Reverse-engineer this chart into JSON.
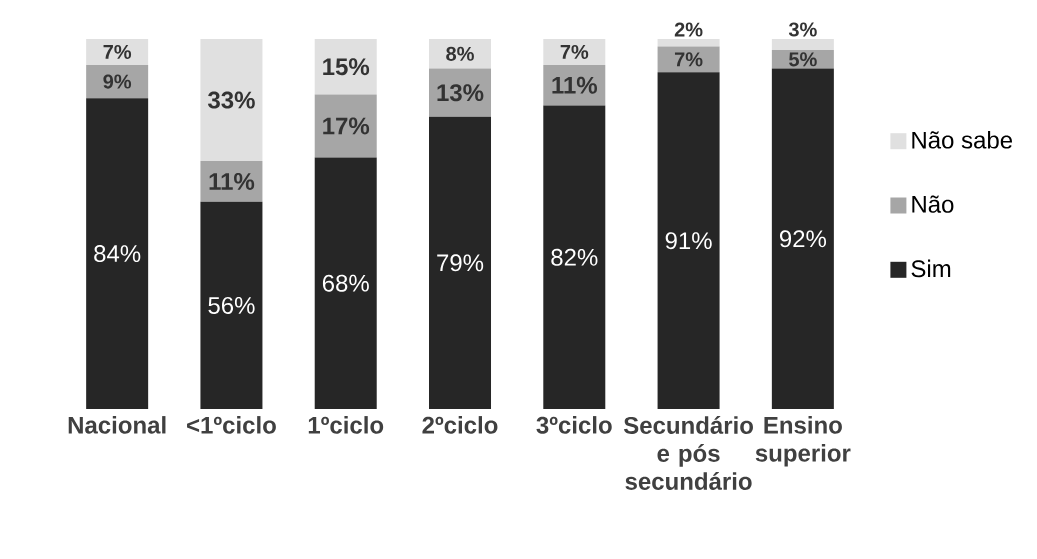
{
  "chart_data": {
    "type": "bar",
    "stacked": true,
    "legend": "right",
    "categories": [
      "Nacional",
      "<1ºciclo",
      "1ºciclo",
      "2ºciclo",
      "3ºciclo",
      "Secundário e pós secundário",
      "Ensino superior"
    ],
    "series": [
      {
        "name": "Sim",
        "color": "#262626",
        "values": [
          84,
          56,
          68,
          79,
          82,
          91,
          92
        ],
        "value_labels": [
          "84%",
          "56%",
          "68%",
          "79%",
          "82%",
          "91%",
          "92%"
        ]
      },
      {
        "name": "Não",
        "color": "#a6a6a6",
        "values": [
          9,
          11,
          17,
          13,
          11,
          7,
          5
        ],
        "value_labels": [
          "9%",
          "11%",
          "17%",
          "13%",
          "11%",
          "7%",
          "5%"
        ]
      },
      {
        "name": "Não sabe",
        "color": "#e0e0e0",
        "values": [
          7,
          33,
          15,
          8,
          7,
          2,
          3
        ],
        "value_labels": [
          "7%",
          "33%",
          "15%",
          "8%",
          "7%",
          "2%",
          "3%"
        ]
      }
    ]
  }
}
